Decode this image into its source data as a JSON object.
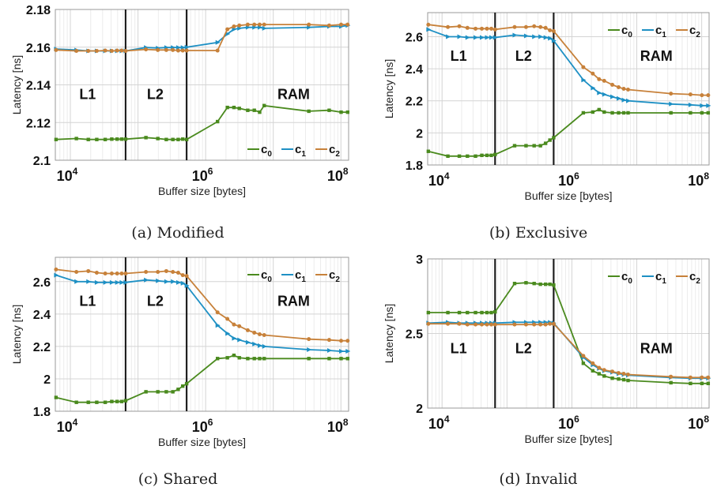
{
  "colors": {
    "c0": "#4a8a1e",
    "c1": "#1e90c4",
    "c2": "#c7813a",
    "grid_minor": "#ececec",
    "grid_major": "#d4d4d4",
    "cache_line": "#111111"
  },
  "captions": [
    "(a) Modified",
    "(b) Exclusive",
    "(c) Shared",
    "(d) Invalid"
  ],
  "legend_labels": {
    "c0": "c",
    "c0_sub": "0",
    "c1": "c",
    "c1_sub": "1",
    "c2": "c",
    "c2_sub": "2"
  },
  "chart_data": [
    {
      "type": "line",
      "caption": "(a) Modified",
      "xlabel": "Buffer size [bytes]",
      "ylabel": "Latency [ns]",
      "xscale": "log",
      "xlim": [
        6000,
        130000000
      ],
      "ylim": [
        2.1,
        2.18
      ],
      "yticks": [
        2.1,
        2.12,
        2.14,
        2.16,
        2.18
      ],
      "ytick_labels": [
        "2.1",
        "2.12",
        "2.14",
        "2.16",
        "2.18"
      ],
      "xticks": [
        10000,
        1000000,
        100000000
      ],
      "xtick_labels": [
        "10^4",
        "10^6",
        "10^8"
      ],
      "cache_boundaries": [
        65536,
        524288
      ],
      "region_labels": [
        {
          "text": "L1",
          "x": 18000,
          "y": 2.135
        },
        {
          "text": "L2",
          "x": 180000,
          "y": 2.135
        },
        {
          "text": "RAM",
          "x": 20000000,
          "y": 2.135
        }
      ],
      "legend": "bottom-right",
      "grid": true,
      "series": [
        {
          "name": "c0",
          "x": [
            6144,
            12288,
            18432,
            24576,
            32768,
            40960,
            49152,
            57344,
            65536,
            131072,
            196608,
            262144,
            327680,
            393216,
            458752,
            524288,
            1500000,
            2097152,
            2621440,
            3145728,
            4194304,
            5242880,
            6291456,
            7340032,
            33554432,
            67108864,
            100663296,
            125829120
          ],
          "y": [
            2.111,
            2.1115,
            2.111,
            2.111,
            2.111,
            2.1112,
            2.1112,
            2.1112,
            2.1112,
            2.112,
            2.1115,
            2.111,
            2.111,
            2.111,
            2.1112,
            2.111,
            2.1205,
            2.128,
            2.128,
            2.1275,
            2.1265,
            2.1265,
            2.1255,
            2.129,
            2.126,
            2.1265,
            2.1255,
            2.1255
          ]
        },
        {
          "name": "c1",
          "x": [
            6144,
            12288,
            18432,
            24576,
            32768,
            40960,
            49152,
            57344,
            65536,
            131072,
            196608,
            262144,
            327680,
            393216,
            458752,
            524288,
            1500000,
            2097152,
            2621440,
            3145728,
            4194304,
            5242880,
            6291456,
            7340032,
            33554432,
            67108864,
            100663296,
            125829120
          ],
          "y": [
            2.159,
            2.1585,
            2.158,
            2.158,
            2.158,
            2.158,
            2.158,
            2.158,
            2.158,
            2.1598,
            2.1595,
            2.1598,
            2.1598,
            2.1598,
            2.1598,
            2.16,
            2.1625,
            2.167,
            2.1695,
            2.17,
            2.1705,
            2.1705,
            2.1705,
            2.17,
            2.1705,
            2.171,
            2.171,
            2.1715
          ]
        },
        {
          "name": "c2",
          "x": [
            6144,
            12288,
            18432,
            24576,
            32768,
            40960,
            49152,
            57344,
            65536,
            131072,
            196608,
            262144,
            327680,
            393216,
            458752,
            524288,
            1500000,
            2097152,
            2621440,
            3145728,
            4194304,
            5242880,
            6291456,
            7340032,
            33554432,
            67108864,
            100663296,
            125829120
          ],
          "y": [
            2.1585,
            2.158,
            2.158,
            2.158,
            2.1582,
            2.158,
            2.1582,
            2.1582,
            2.158,
            2.1588,
            2.1585,
            2.1585,
            2.1585,
            2.1582,
            2.1582,
            2.1582,
            2.1582,
            2.1695,
            2.171,
            2.1715,
            2.172,
            2.172,
            2.172,
            2.172,
            2.172,
            2.1715,
            2.172,
            2.172
          ]
        }
      ]
    },
    {
      "type": "line",
      "caption": "(b) Exclusive",
      "xlabel": "Buffer size [bytes]",
      "ylabel": "Latency [ns]",
      "xscale": "log",
      "xlim": [
        6000,
        130000000
      ],
      "ylim": [
        1.8,
        2.75
      ],
      "yticks": [
        1.8,
        2.0,
        2.2,
        2.4,
        2.6
      ],
      "ytick_labels": [
        "1.8",
        "2",
        "2.2",
        "2.4",
        "2.6"
      ],
      "xticks": [
        10000,
        1000000,
        100000000
      ],
      "xtick_labels": [
        "10^4",
        "10^6",
        "10^8"
      ],
      "cache_boundaries": [
        65536,
        524288
      ],
      "region_labels": [
        {
          "text": "L1",
          "x": 18000,
          "y": 2.48
        },
        {
          "text": "L2",
          "x": 180000,
          "y": 2.48
        },
        {
          "text": "RAM",
          "x": 20000000,
          "y": 2.48
        }
      ],
      "legend": "top-right",
      "grid": true,
      "series": [
        {
          "name": "c0",
          "x": [
            6144,
            12288,
            18432,
            24576,
            32768,
            40960,
            49152,
            57344,
            65536,
            131072,
            196608,
            262144,
            327680,
            393216,
            458752,
            524288,
            1500000,
            2097152,
            2621440,
            3145728,
            4194304,
            5242880,
            6291456,
            7340032,
            33554432,
            67108864,
            100663296,
            125829120
          ],
          "y": [
            1.885,
            1.855,
            1.855,
            1.855,
            1.855,
            1.86,
            1.86,
            1.86,
            1.865,
            1.92,
            1.92,
            1.92,
            1.92,
            1.935,
            1.955,
            1.97,
            2.125,
            2.13,
            2.145,
            2.13,
            2.125,
            2.125,
            2.125,
            2.125,
            2.125,
            2.125,
            2.125,
            2.125
          ]
        },
        {
          "name": "c1",
          "x": [
            6144,
            12288,
            18432,
            24576,
            32768,
            40960,
            49152,
            57344,
            65536,
            131072,
            196608,
            262144,
            327680,
            393216,
            458752,
            524288,
            1500000,
            2097152,
            2621440,
            3145728,
            4194304,
            5242880,
            6291456,
            7340032,
            33554432,
            67108864,
            100663296,
            125829120
          ],
          "y": [
            2.645,
            2.6,
            2.6,
            2.595,
            2.595,
            2.595,
            2.595,
            2.595,
            2.595,
            2.61,
            2.605,
            2.6,
            2.6,
            2.595,
            2.59,
            2.575,
            2.33,
            2.28,
            2.25,
            2.24,
            2.225,
            2.215,
            2.205,
            2.2,
            2.18,
            2.175,
            2.17,
            2.17
          ]
        },
        {
          "name": "c2",
          "x": [
            6144,
            12288,
            18432,
            24576,
            32768,
            40960,
            49152,
            57344,
            65536,
            131072,
            196608,
            262144,
            327680,
            393216,
            458752,
            524288,
            1500000,
            2097152,
            2621440,
            3145728,
            4194304,
            5242880,
            6291456,
            7340032,
            33554432,
            67108864,
            100663296,
            125829120
          ],
          "y": [
            2.675,
            2.66,
            2.665,
            2.655,
            2.65,
            2.65,
            2.65,
            2.65,
            2.645,
            2.66,
            2.66,
            2.665,
            2.66,
            2.655,
            2.64,
            2.635,
            2.41,
            2.37,
            2.335,
            2.325,
            2.3,
            2.285,
            2.275,
            2.27,
            2.245,
            2.24,
            2.235,
            2.235
          ]
        }
      ]
    },
    {
      "type": "line",
      "caption": "(c) Shared",
      "xlabel": "Buffer size [bytes]",
      "ylabel": "Latency [ns]",
      "xscale": "log",
      "xlim": [
        6000,
        130000000
      ],
      "ylim": [
        1.8,
        2.75
      ],
      "yticks": [
        1.8,
        2.0,
        2.2,
        2.4,
        2.6
      ],
      "ytick_labels": [
        "1.8",
        "2",
        "2.2",
        "2.4",
        "2.6"
      ],
      "xticks": [
        10000,
        1000000,
        100000000
      ],
      "xtick_labels": [
        "10^4",
        "10^6",
        "10^8"
      ],
      "cache_boundaries": [
        65536,
        524288
      ],
      "region_labels": [
        {
          "text": "L1",
          "x": 18000,
          "y": 2.48
        },
        {
          "text": "L2",
          "x": 180000,
          "y": 2.48
        },
        {
          "text": "RAM",
          "x": 20000000,
          "y": 2.48
        }
      ],
      "legend": "top-right",
      "grid": true,
      "series": [
        {
          "name": "c0",
          "x": [
            6144,
            12288,
            18432,
            24576,
            32768,
            40960,
            49152,
            57344,
            65536,
            131072,
            196608,
            262144,
            327680,
            393216,
            458752,
            524288,
            1500000,
            2097152,
            2621440,
            3145728,
            4194304,
            5242880,
            6291456,
            7340032,
            33554432,
            67108864,
            100663296,
            125829120
          ],
          "y": [
            1.885,
            1.855,
            1.855,
            1.855,
            1.855,
            1.86,
            1.86,
            1.86,
            1.865,
            1.92,
            1.92,
            1.92,
            1.92,
            1.935,
            1.955,
            1.97,
            2.125,
            2.13,
            2.145,
            2.13,
            2.125,
            2.125,
            2.125,
            2.125,
            2.125,
            2.125,
            2.125,
            2.125
          ]
        },
        {
          "name": "c1",
          "x": [
            6144,
            12288,
            18432,
            24576,
            32768,
            40960,
            49152,
            57344,
            65536,
            131072,
            196608,
            262144,
            327680,
            393216,
            458752,
            524288,
            1500000,
            2097152,
            2621440,
            3145728,
            4194304,
            5242880,
            6291456,
            7340032,
            33554432,
            67108864,
            100663296,
            125829120
          ],
          "y": [
            2.64,
            2.6,
            2.6,
            2.595,
            2.595,
            2.595,
            2.595,
            2.595,
            2.595,
            2.61,
            2.605,
            2.6,
            2.6,
            2.595,
            2.59,
            2.575,
            2.33,
            2.28,
            2.25,
            2.24,
            2.225,
            2.215,
            2.205,
            2.2,
            2.18,
            2.175,
            2.17,
            2.17
          ]
        },
        {
          "name": "c2",
          "x": [
            6144,
            12288,
            18432,
            24576,
            32768,
            40960,
            49152,
            57344,
            65536,
            131072,
            196608,
            262144,
            327680,
            393216,
            458752,
            524288,
            1500000,
            2097152,
            2621440,
            3145728,
            4194304,
            5242880,
            6291456,
            7340032,
            33554432,
            67108864,
            100663296,
            125829120
          ],
          "y": [
            2.675,
            2.66,
            2.665,
            2.655,
            2.65,
            2.65,
            2.65,
            2.65,
            2.65,
            2.66,
            2.66,
            2.665,
            2.66,
            2.655,
            2.64,
            2.635,
            2.41,
            2.37,
            2.335,
            2.325,
            2.3,
            2.285,
            2.275,
            2.27,
            2.245,
            2.24,
            2.235,
            2.235
          ]
        }
      ]
    },
    {
      "type": "line",
      "caption": "(d) Invalid",
      "xlabel": "Buffer size [bytes]",
      "ylabel": "Latency [ns]",
      "xscale": "log",
      "xlim": [
        6000,
        130000000
      ],
      "ylim": [
        2.0,
        3.0
      ],
      "yticks": [
        2.0,
        2.5,
        3.0
      ],
      "ytick_labels": [
        "2",
        "2.5",
        "3"
      ],
      "xticks": [
        10000,
        1000000,
        100000000
      ],
      "xtick_labels": [
        "10^4",
        "10^6",
        "10^8"
      ],
      "cache_boundaries": [
        65536,
        524288
      ],
      "region_labels": [
        {
          "text": "L1",
          "x": 18000,
          "y": 2.4
        },
        {
          "text": "L2",
          "x": 180000,
          "y": 2.4
        },
        {
          "text": "RAM",
          "x": 20000000,
          "y": 2.4
        }
      ],
      "legend": "top-right",
      "grid": true,
      "series": [
        {
          "name": "c0",
          "x": [
            6144,
            12288,
            18432,
            24576,
            32768,
            40960,
            49152,
            57344,
            65536,
            131072,
            196608,
            262144,
            327680,
            393216,
            458752,
            524288,
            1500000,
            2097152,
            2621440,
            3145728,
            4194304,
            5242880,
            6291456,
            7340032,
            33554432,
            67108864,
            100663296,
            125829120
          ],
          "y": [
            2.64,
            2.64,
            2.64,
            2.64,
            2.64,
            2.64,
            2.64,
            2.64,
            2.645,
            2.835,
            2.84,
            2.835,
            2.83,
            2.83,
            2.83,
            2.825,
            2.3,
            2.25,
            2.23,
            2.215,
            2.2,
            2.195,
            2.19,
            2.185,
            2.17,
            2.165,
            2.165,
            2.165
          ]
        },
        {
          "name": "c1",
          "x": [
            6144,
            12288,
            18432,
            24576,
            32768,
            40960,
            49152,
            57344,
            65536,
            131072,
            196608,
            262144,
            327680,
            393216,
            458752,
            524288,
            1500000,
            2097152,
            2621440,
            3145728,
            4194304,
            5242880,
            6291456,
            7340032,
            33554432,
            67108864,
            100663296,
            125829120
          ],
          "y": [
            2.57,
            2.575,
            2.57,
            2.57,
            2.57,
            2.57,
            2.57,
            2.57,
            2.57,
            2.575,
            2.575,
            2.575,
            2.575,
            2.575,
            2.575,
            2.57,
            2.34,
            2.29,
            2.265,
            2.25,
            2.24,
            2.23,
            2.225,
            2.22,
            2.205,
            2.2,
            2.2,
            2.2
          ]
        },
        {
          "name": "c2",
          "x": [
            6144,
            12288,
            18432,
            24576,
            32768,
            40960,
            49152,
            57344,
            65536,
            131072,
            196608,
            262144,
            327680,
            393216,
            458752,
            524288,
            1500000,
            2097152,
            2621440,
            3145728,
            4194304,
            5242880,
            6291456,
            7340032,
            33554432,
            67108864,
            100663296,
            125829120
          ],
          "y": [
            2.565,
            2.565,
            2.565,
            2.56,
            2.56,
            2.56,
            2.56,
            2.56,
            2.56,
            2.56,
            2.56,
            2.56,
            2.56,
            2.56,
            2.565,
            2.565,
            2.35,
            2.3,
            2.27,
            2.255,
            2.245,
            2.235,
            2.23,
            2.225,
            2.21,
            2.205,
            2.205,
            2.205
          ]
        }
      ]
    }
  ]
}
